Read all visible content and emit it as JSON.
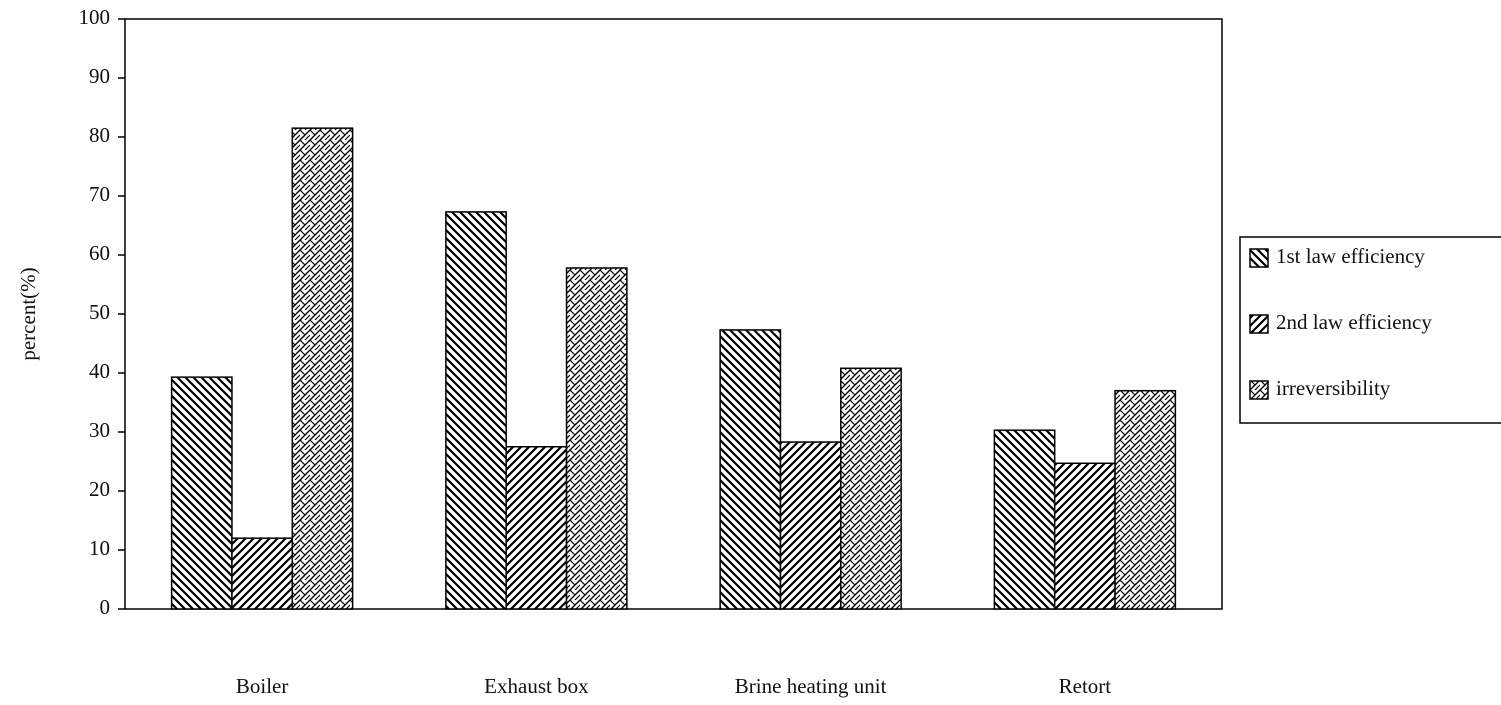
{
  "chart_data": {
    "type": "bar",
    "categories": [
      "Boiler",
      "Exhaust box",
      "Brine heating unit",
      "Retort"
    ],
    "series": [
      {
        "name": "1st law efficiency",
        "color": "#000000",
        "hatch": "backslash",
        "values": [
          39.3,
          67.3,
          47.3,
          30.3
        ]
      },
      {
        "name": "2nd law efficiency",
        "color": "#000000",
        "hatch": "slash",
        "values": [
          12.0,
          27.5,
          28.3,
          24.7
        ]
      },
      {
        "name": "irreversibility",
        "color": "#000000",
        "hatch": "cross",
        "values": [
          81.5,
          57.8,
          40.8,
          37.0
        ]
      }
    ],
    "y_label": "percent(%)",
    "ylim": [
      0,
      100
    ],
    "yticks": [
      0,
      10,
      20,
      30,
      40,
      50,
      60,
      70,
      80,
      90,
      100
    ],
    "grid": false,
    "legend": "right"
  }
}
